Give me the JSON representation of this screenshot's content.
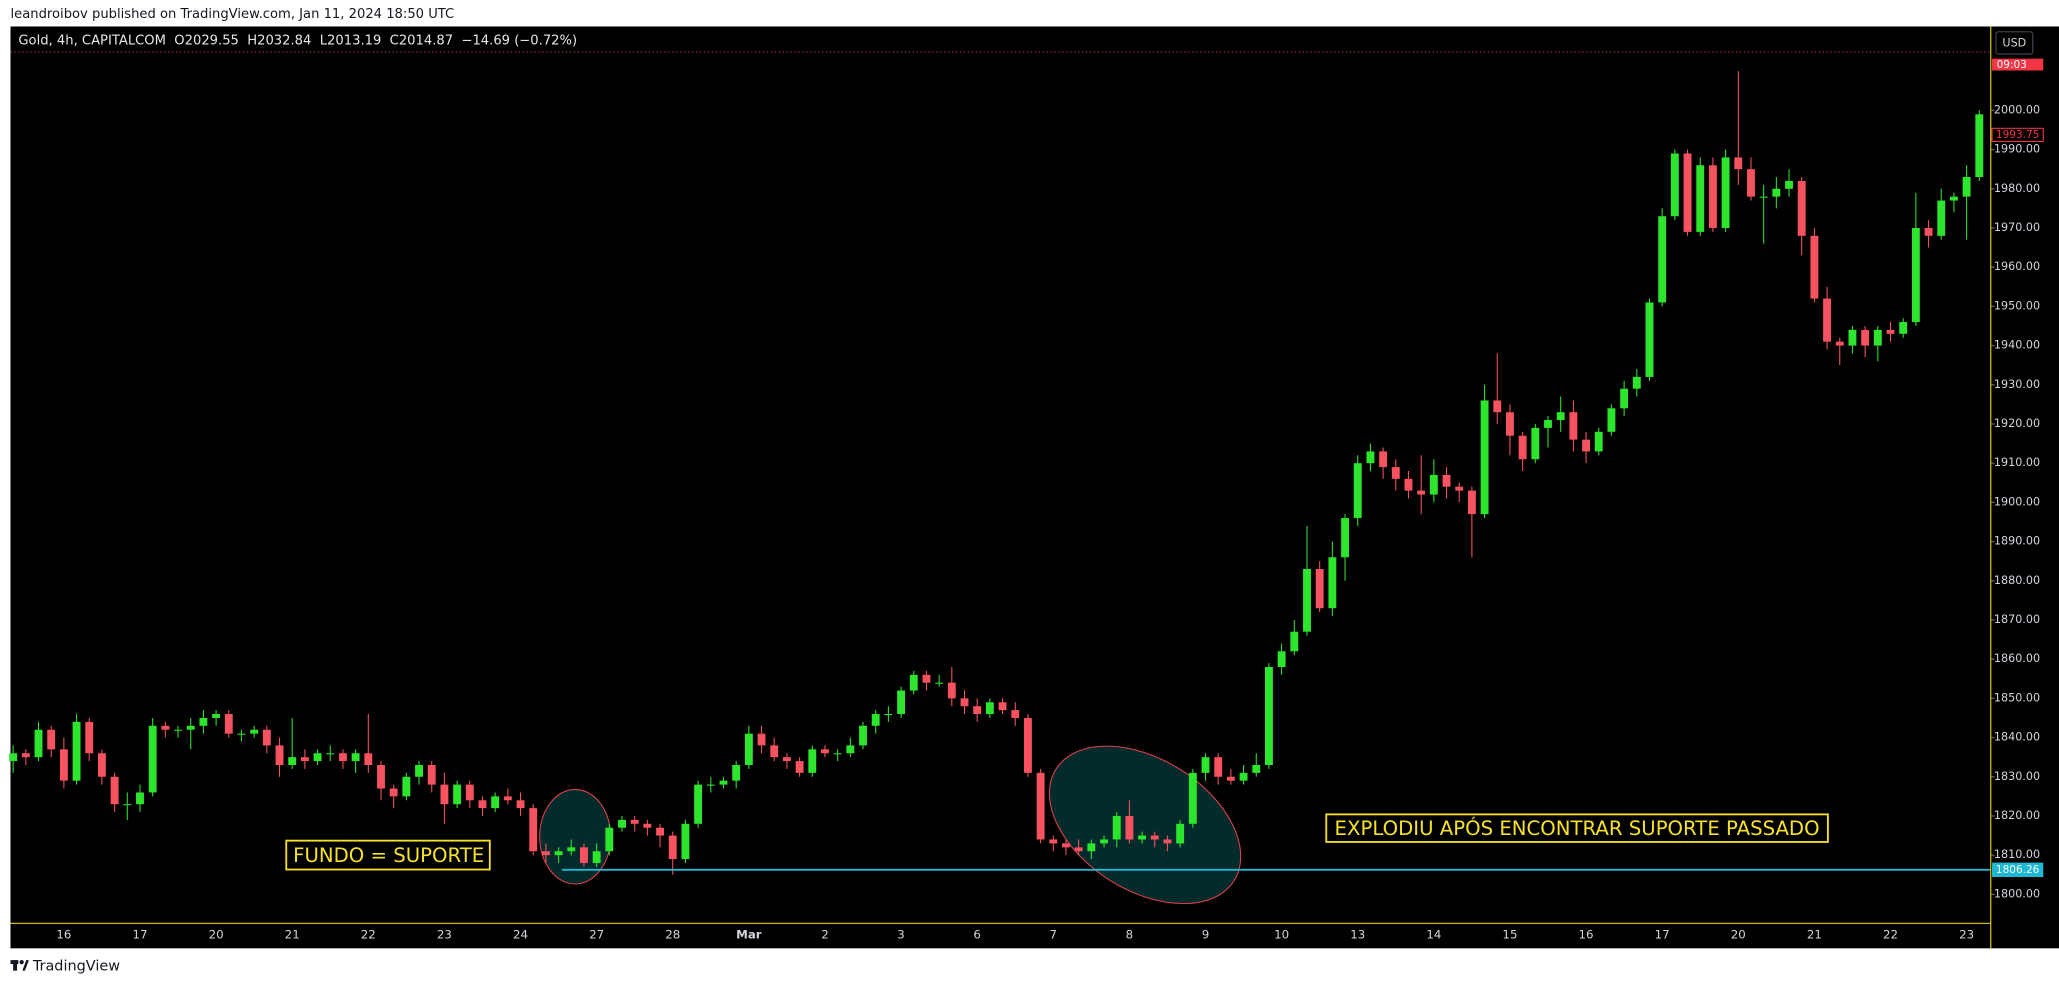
{
  "publisher_line": "leandroibov published on TradingView.com, Jan 11, 2024 18:50 UTC",
  "footer_brand": "TradingView",
  "chart_data": {
    "type": "candlestick",
    "legend_text": "Gold, 4h, CAPITALCOM  O2029.55  H2032.84  L2013.19  C2014.87  −14.69 (−0.72%)",
    "currency": "USD",
    "countdown": "09:03",
    "last_price_line": 2014.87,
    "alert_price": 1993.75,
    "support_price": 1806.26,
    "annotations": [
      "FUNDO = SUPORTE",
      "EXPLODIU APÓS ENCONTRAR SUPORTE PASSADO"
    ],
    "up_color": "#2ee52e",
    "down_color": "#f7525f",
    "support_color": "#1cb8d4",
    "ylim": [
      1792.6,
      2021.4
    ],
    "yticks": [
      {
        "value": 1800,
        "label": "1800.00"
      },
      {
        "value": 1810,
        "label": "1810.00"
      },
      {
        "value": 1820,
        "label": "1820.00"
      },
      {
        "value": 1830,
        "label": "1830.00"
      },
      {
        "value": 1840,
        "label": "1840.00"
      },
      {
        "value": 1850,
        "label": "1850.00"
      },
      {
        "value": 1860,
        "label": "1860.00"
      },
      {
        "value": 1870,
        "label": "1870.00"
      },
      {
        "value": 1880,
        "label": "1880.00"
      },
      {
        "value": 1890,
        "label": "1890.00"
      },
      {
        "value": 1900,
        "label": "1900.00"
      },
      {
        "value": 1910,
        "label": "1910.00"
      },
      {
        "value": 1920,
        "label": "1920.00"
      },
      {
        "value": 1930,
        "label": "1930.00"
      },
      {
        "value": 1940,
        "label": "1940.00"
      },
      {
        "value": 1950,
        "label": "1950.00"
      },
      {
        "value": 1960,
        "label": "1960.00"
      },
      {
        "value": 1970,
        "label": "1970.00"
      },
      {
        "value": 1980,
        "label": "1980.00"
      },
      {
        "value": 1990,
        "label": "1990.00"
      },
      {
        "value": 2000,
        "label": "2000.00"
      }
    ],
    "categories": [
      null,
      null,
      null,
      null,
      "16",
      null,
      null,
      null,
      null,
      null,
      "17",
      null,
      null,
      null,
      null,
      null,
      "20",
      null,
      null,
      null,
      null,
      null,
      "21",
      null,
      null,
      null,
      null,
      null,
      "22",
      null,
      null,
      null,
      null,
      null,
      "23",
      null,
      null,
      null,
      null,
      null,
      "24",
      null,
      null,
      null,
      null,
      null,
      "27",
      null,
      null,
      null,
      null,
      null,
      "28",
      null,
      null,
      null,
      null,
      null,
      "Mar",
      null,
      null,
      null,
      null,
      null,
      "2",
      null,
      null,
      null,
      null,
      null,
      "3",
      null,
      null,
      null,
      null,
      null,
      "6",
      null,
      null,
      null,
      null,
      null,
      "7",
      null,
      null,
      null,
      null,
      null,
      "8",
      null,
      null,
      null,
      null,
      null,
      "9",
      null,
      null,
      null,
      null,
      null,
      "10",
      null,
      null,
      null,
      null,
      null,
      "13",
      null,
      null,
      null,
      null,
      null,
      "14",
      null,
      null,
      null,
      null,
      null,
      "15",
      null,
      null,
      null,
      null,
      null,
      "16",
      null,
      null,
      null,
      null,
      null,
      "17",
      null,
      null,
      null,
      null,
      null,
      "20",
      null,
      null,
      null,
      null,
      null,
      "21",
      null,
      null,
      null,
      null,
      null,
      "22",
      null,
      null,
      null,
      null,
      null,
      "23",
      null
    ],
    "candles": [
      [
        1834,
        1838,
        1831,
        1836
      ],
      [
        1836,
        1837,
        1833,
        1835
      ],
      [
        1835,
        1844,
        1834,
        1842
      ],
      [
        1842,
        1843,
        1835,
        1837
      ],
      [
        1837,
        1840,
        1827,
        1829
      ],
      [
        1829,
        1846,
        1828,
        1844
      ],
      [
        1844,
        1845,
        1834,
        1836
      ],
      [
        1836,
        1837,
        1828,
        1830
      ],
      [
        1830,
        1831,
        1821,
        1823
      ],
      [
        1823,
        1826,
        1819,
        1823
      ],
      [
        1823,
        1828,
        1821,
        1826
      ],
      [
        1826,
        1845,
        1825,
        1843
      ],
      [
        1843,
        1844,
        1840,
        1842
      ],
      [
        1842,
        1843,
        1840,
        1842
      ],
      [
        1842,
        1845,
        1837,
        1843
      ],
      [
        1843,
        1847,
        1841,
        1845
      ],
      [
        1845,
        1847,
        1843,
        1846
      ],
      [
        1846,
        1847,
        1840,
        1841
      ],
      [
        1841,
        1842,
        1839,
        1841
      ],
      [
        1841,
        1843,
        1840,
        1842
      ],
      [
        1842,
        1843,
        1836,
        1838
      ],
      [
        1838,
        1840,
        1830,
        1833
      ],
      [
        1833,
        1845,
        1832,
        1835
      ],
      [
        1835,
        1837,
        1832,
        1834
      ],
      [
        1834,
        1837,
        1833,
        1836
      ],
      [
        1836,
        1838,
        1834,
        1836
      ],
      [
        1836,
        1837,
        1832,
        1834
      ],
      [
        1834,
        1837,
        1831,
        1836
      ],
      [
        1836,
        1846,
        1831,
        1833
      ],
      [
        1833,
        1834,
        1824,
        1827
      ],
      [
        1827,
        1828,
        1822,
        1825
      ],
      [
        1825,
        1831,
        1824,
        1830
      ],
      [
        1830,
        1834,
        1828,
        1833
      ],
      [
        1833,
        1834,
        1826,
        1828
      ],
      [
        1828,
        1831,
        1818,
        1823
      ],
      [
        1823,
        1829,
        1822,
        1828
      ],
      [
        1828,
        1829,
        1822,
        1824
      ],
      [
        1824,
        1825,
        1820,
        1822
      ],
      [
        1822,
        1826,
        1821,
        1825
      ],
      [
        1825,
        1827,
        1823,
        1824
      ],
      [
        1824,
        1826,
        1820,
        1822
      ],
      [
        1822,
        1823,
        1810,
        1811
      ],
      [
        1811,
        1813,
        1808,
        1810
      ],
      [
        1810,
        1812,
        1808,
        1811
      ],
      [
        1811,
        1814,
        1810,
        1812
      ],
      [
        1812,
        1813,
        1807,
        1808
      ],
      [
        1808,
        1813,
        1807,
        1811
      ],
      [
        1811,
        1818,
        1810,
        1817
      ],
      [
        1817,
        1820,
        1816,
        1819
      ],
      [
        1819,
        1820,
        1816,
        1818
      ],
      [
        1818,
        1819,
        1815,
        1817
      ],
      [
        1817,
        1818,
        1812,
        1815
      ],
      [
        1815,
        1816,
        1805,
        1809
      ],
      [
        1809,
        1819,
        1808,
        1818
      ],
      [
        1818,
        1829,
        1817,
        1828
      ],
      [
        1828,
        1830,
        1826,
        1828
      ],
      [
        1828,
        1830,
        1827,
        1829
      ],
      [
        1829,
        1834,
        1827,
        1833
      ],
      [
        1833,
        1843,
        1832,
        1841
      ],
      [
        1841,
        1843,
        1836,
        1838
      ],
      [
        1838,
        1840,
        1834,
        1835
      ],
      [
        1835,
        1836,
        1832,
        1834
      ],
      [
        1834,
        1835,
        1830,
        1831
      ],
      [
        1831,
        1838,
        1830,
        1837
      ],
      [
        1837,
        1838,
        1835,
        1836
      ],
      [
        1836,
        1837,
        1834,
        1836
      ],
      [
        1836,
        1840,
        1835,
        1838
      ],
      [
        1838,
        1844,
        1837,
        1843
      ],
      [
        1843,
        1847,
        1841,
        1846
      ],
      [
        1846,
        1848,
        1844,
        1846
      ],
      [
        1846,
        1853,
        1845,
        1852
      ],
      [
        1852,
        1857,
        1851,
        1856
      ],
      [
        1856,
        1857,
        1852,
        1854
      ],
      [
        1854,
        1856,
        1853,
        1854
      ],
      [
        1854,
        1858,
        1848,
        1850
      ],
      [
        1850,
        1852,
        1846,
        1848
      ],
      [
        1848,
        1850,
        1844,
        1846
      ],
      [
        1846,
        1850,
        1845,
        1849
      ],
      [
        1849,
        1850,
        1846,
        1847
      ],
      [
        1847,
        1849,
        1843,
        1845
      ],
      [
        1845,
        1846,
        1830,
        1831
      ],
      [
        1831,
        1832,
        1813,
        1814
      ],
      [
        1814,
        1815,
        1811,
        1813
      ],
      [
        1813,
        1814,
        1810,
        1812
      ],
      [
        1812,
        1814,
        1810,
        1811
      ],
      [
        1811,
        1814,
        1809,
        1813
      ],
      [
        1813,
        1815,
        1812,
        1814
      ],
      [
        1814,
        1821,
        1812,
        1820
      ],
      [
        1820,
        1824,
        1813,
        1814
      ],
      [
        1814,
        1816,
        1813,
        1815
      ],
      [
        1815,
        1816,
        1812,
        1814
      ],
      [
        1814,
        1815,
        1811,
        1813
      ],
      [
        1813,
        1819,
        1812,
        1818
      ],
      [
        1818,
        1832,
        1817,
        1831
      ],
      [
        1831,
        1836,
        1829,
        1835
      ],
      [
        1835,
        1836,
        1828,
        1830
      ],
      [
        1830,
        1832,
        1828,
        1829
      ],
      [
        1829,
        1833,
        1828,
        1831
      ],
      [
        1831,
        1836,
        1830,
        1833
      ],
      [
        1833,
        1859,
        1832,
        1858
      ],
      [
        1858,
        1864,
        1856,
        1862
      ],
      [
        1862,
        1870,
        1861,
        1867
      ],
      [
        1867,
        1894,
        1866,
        1883
      ],
      [
        1883,
        1885,
        1872,
        1873
      ],
      [
        1873,
        1890,
        1871,
        1886
      ],
      [
        1886,
        1897,
        1880,
        1896
      ],
      [
        1896,
        1912,
        1894,
        1910
      ],
      [
        1910,
        1915,
        1908,
        1913
      ],
      [
        1913,
        1914,
        1906,
        1909
      ],
      [
        1909,
        1911,
        1903,
        1906
      ],
      [
        1906,
        1908,
        1901,
        1903
      ],
      [
        1903,
        1912,
        1897,
        1902
      ],
      [
        1902,
        1911,
        1900,
        1907
      ],
      [
        1907,
        1909,
        1901,
        1904
      ],
      [
        1904,
        1905,
        1900,
        1903
      ],
      [
        1903,
        1904,
        1886,
        1897
      ],
      [
        1897,
        1930,
        1896,
        1926
      ],
      [
        1926,
        1938,
        1920,
        1923
      ],
      [
        1923,
        1925,
        1912,
        1917
      ],
      [
        1917,
        1918,
        1908,
        1911
      ],
      [
        1911,
        1920,
        1910,
        1919
      ],
      [
        1919,
        1922,
        1914,
        1921
      ],
      [
        1921,
        1927,
        1918,
        1923
      ],
      [
        1923,
        1926,
        1913,
        1916
      ],
      [
        1916,
        1918,
        1910,
        1913
      ],
      [
        1913,
        1919,
        1912,
        1918
      ],
      [
        1918,
        1925,
        1917,
        1924
      ],
      [
        1924,
        1931,
        1922,
        1929
      ],
      [
        1929,
        1934,
        1927,
        1932
      ],
      [
        1932,
        1952,
        1931,
        1951
      ],
      [
        1951,
        1975,
        1950,
        1973
      ],
      [
        1973,
        1990,
        1972,
        1989
      ],
      [
        1989,
        1990,
        1968,
        1969
      ],
      [
        1969,
        1988,
        1968,
        1986
      ],
      [
        1986,
        1988,
        1969,
        1970
      ],
      [
        1970,
        1990,
        1969,
        1988
      ],
      [
        1988,
        2010,
        1981,
        1985
      ],
      [
        1985,
        1988,
        1977,
        1978
      ],
      [
        1978,
        1981,
        1966,
        1978
      ],
      [
        1978,
        1983,
        1975,
        1980
      ],
      [
        1980,
        1985,
        1978,
        1982
      ],
      [
        1982,
        1983,
        1963,
        1968
      ],
      [
        1968,
        1970,
        1951,
        1952
      ],
      [
        1952,
        1955,
        1939,
        1941
      ],
      [
        1941,
        1942,
        1935,
        1940
      ],
      [
        1940,
        1945,
        1938,
        1944
      ],
      [
        1944,
        1945,
        1937,
        1940
      ],
      [
        1940,
        1945,
        1936,
        1944
      ],
      [
        1944,
        1946,
        1941,
        1943
      ],
      [
        1943,
        1947,
        1942,
        1946
      ],
      [
        1946,
        1979,
        1945,
        1970
      ],
      [
        1970,
        1972,
        1965,
        1968
      ],
      [
        1968,
        1980,
        1967,
        1977
      ],
      [
        1977,
        1979,
        1974,
        1978
      ],
      [
        1978,
        1986,
        1967,
        1983
      ],
      [
        1983,
        2000,
        1982,
        1999
      ]
    ]
  }
}
